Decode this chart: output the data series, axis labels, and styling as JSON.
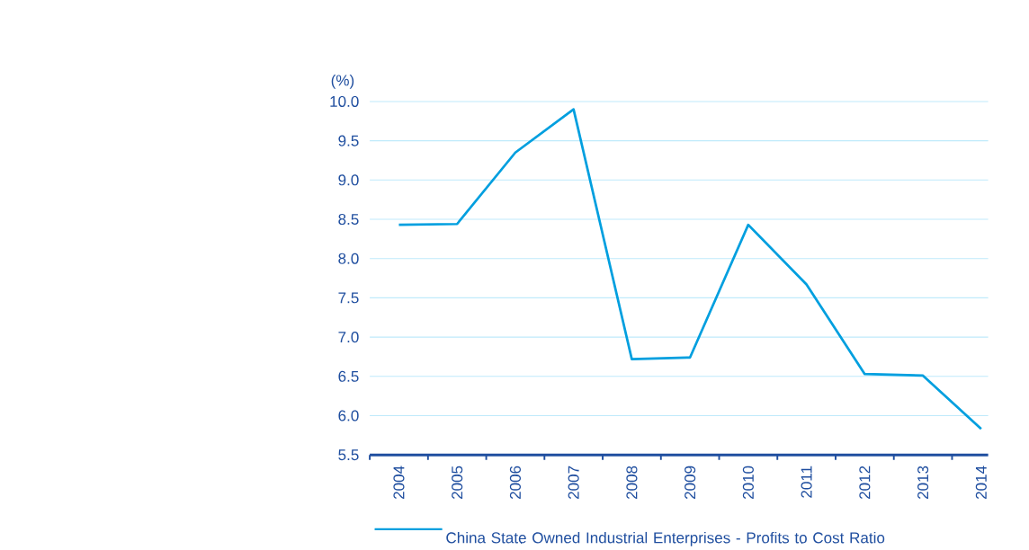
{
  "chart_data": {
    "type": "line",
    "ylabel": "(%)",
    "categories": [
      "2004",
      "2005",
      "2006",
      "2007",
      "2008",
      "2009",
      "2010",
      "2011",
      "2012",
      "2013",
      "2014"
    ],
    "series": [
      {
        "name": "China State Owned Industrial Enterprises - Profits to Cost Ratio",
        "color": "#009fdf",
        "values": [
          8.43,
          8.44,
          9.35,
          9.9,
          6.72,
          6.74,
          8.43,
          7.67,
          6.53,
          6.51,
          5.83
        ]
      }
    ],
    "ylim": [
      5.5,
      10.0
    ],
    "yticks": [
      {
        "value": 5.5,
        "label": "5.5"
      },
      {
        "value": 6.0,
        "label": "6.0"
      },
      {
        "value": 6.5,
        "label": "6.5"
      },
      {
        "value": 7.0,
        "label": "7.0"
      },
      {
        "value": 7.5,
        "label": "7.5"
      },
      {
        "value": 8.0,
        "label": "8.0"
      },
      {
        "value": 8.5,
        "label": "8.5"
      },
      {
        "value": 9.0,
        "label": "9.0"
      },
      {
        "value": 9.5,
        "label": "9.5"
      },
      {
        "value": 10.0,
        "label": "10.0"
      }
    ],
    "grid": "y",
    "legend": "bottom",
    "marker": "none",
    "line_style": "solid"
  }
}
